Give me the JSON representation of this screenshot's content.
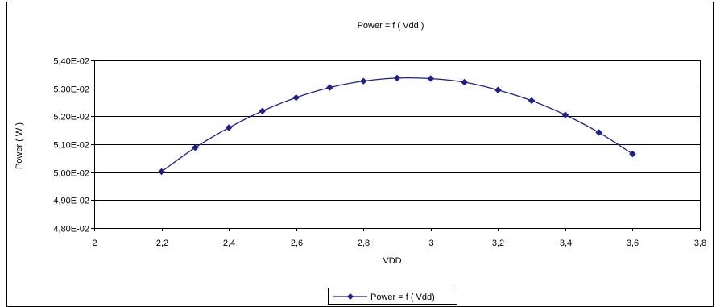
{
  "chart_data": {
    "type": "line",
    "title": "Power = f ( Vdd )",
    "xlabel": "VDD",
    "ylabel": "Power ( W )",
    "xlim": [
      2,
      3.8
    ],
    "ylim": [
      0.048,
      0.054
    ],
    "x_ticks": [
      2,
      2.2,
      2.4,
      2.6,
      2.8,
      3,
      3.2,
      3.4,
      3.6,
      3.8
    ],
    "x_tick_labels": [
      "2",
      "2,2",
      "2,4",
      "2,6",
      "2,8",
      "3",
      "3,2",
      "3,4",
      "3,6",
      "3,8"
    ],
    "y_ticks": [
      0.048,
      0.049,
      0.05,
      0.051,
      0.052,
      0.053,
      0.054
    ],
    "y_tick_labels": [
      "4,80E-02",
      "4,90E-02",
      "5,00E-02",
      "5,10E-02",
      "5,20E-02",
      "5,30E-02",
      "5,40E-02"
    ],
    "grid": "horizontal",
    "legend_position": "bottom",
    "series": [
      {
        "name": "Power = f ( Vdd)",
        "color": "#1f1f8c",
        "marker": "diamond",
        "x": [
          2.2,
          2.3,
          2.4,
          2.5,
          2.6,
          2.7,
          2.8,
          2.9,
          3.0,
          3.1,
          3.2,
          3.3,
          3.4,
          3.5,
          3.6
        ],
        "y": [
          0.05002,
          0.05088,
          0.05159,
          0.05219,
          0.05267,
          0.05303,
          0.05326,
          0.05337,
          0.05335,
          0.05322,
          0.05294,
          0.05256,
          0.05205,
          0.05142,
          0.05065
        ]
      }
    ]
  }
}
